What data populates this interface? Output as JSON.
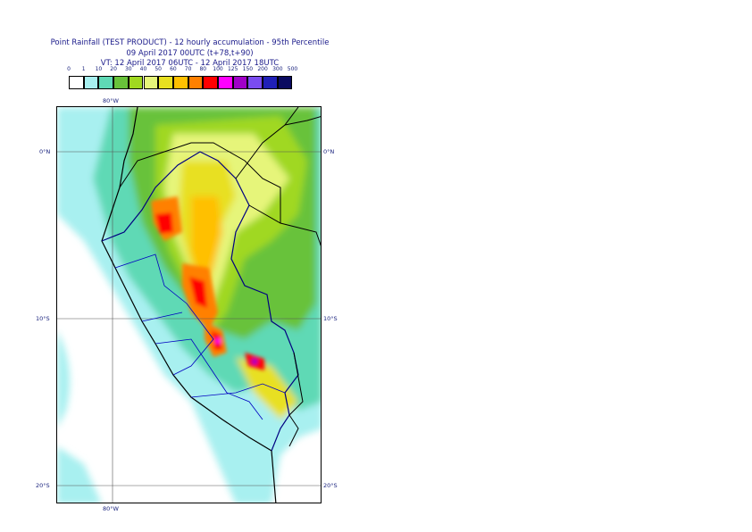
{
  "title": {
    "line1": "Point Rainfall (TEST PRODUCT) - 12 hourly accumulation - 95th Percentile",
    "line2": "09 April 2017 00UTC (t+78,t+90)",
    "line3": "VT: 12 April 2017 06UTC - 12 April 2017 18UTC"
  },
  "legend": {
    "labels": [
      "0",
      "1",
      "10",
      "20",
      "30",
      "40",
      "50",
      "60",
      "70",
      "80",
      "100",
      "125",
      "150",
      "200",
      "300",
      "500"
    ],
    "colors": [
      "#ffffff",
      "#a8f0f0",
      "#5fd9b5",
      "#68c23a",
      "#a0d820",
      "#e6f57a",
      "#e8e020",
      "#ffc000",
      "#ff8000",
      "#ff0000",
      "#ff00ff",
      "#a000c8",
      "#7a4cf0",
      "#2020b8",
      "#0a0a60"
    ]
  },
  "axes": {
    "top_lon": "80°W",
    "bottom_lon": "80°W",
    "left_lat": [
      "0°N",
      "10°S",
      "20°S"
    ],
    "right_lat": [
      "0°N",
      "10°S",
      "20°S"
    ]
  }
}
